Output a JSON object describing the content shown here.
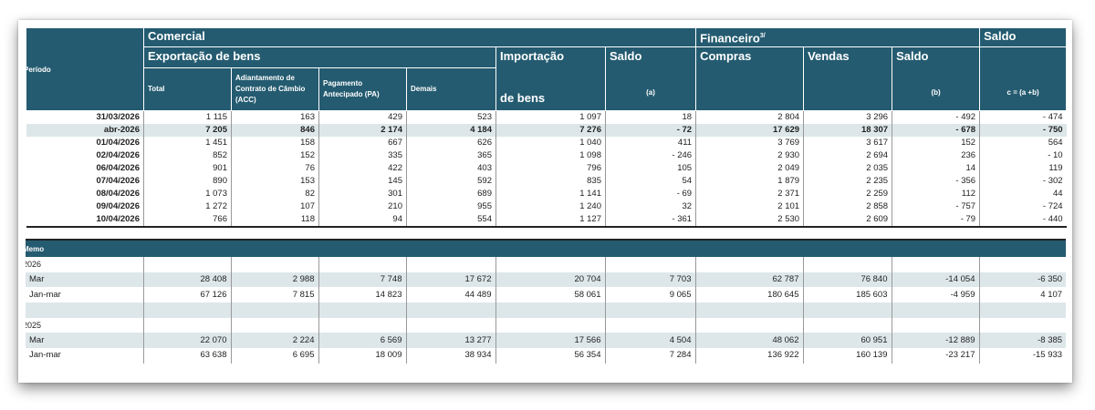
{
  "header": {
    "periodo": "Período",
    "comercial": "Comercial",
    "exportacao": "Exportação de bens",
    "importacao_1": "Importação",
    "importacao_2": "de bens",
    "saldo_a": "Saldo",
    "saldo_a_sub": "(a)",
    "financeiro": "Financeiro",
    "financeiro_note": "3/",
    "saldo_total": "Saldo",
    "saldo_total_sub": "c = (a +b)",
    "compras": "Compras",
    "vendas": "Vendas",
    "saldo_b": "Saldo",
    "saldo_b_sub": "(b)",
    "total": "Total",
    "acc": "Adiantamento de Contrato de Câmbio (ACC)",
    "pa": "Pagamento Antecipado (PA)",
    "demais": "Demais"
  },
  "rows": [
    {
      "periodo": "31/03/2026",
      "values": [
        "1 115",
        "163",
        "429",
        "523",
        "1 097",
        "18",
        "2 804",
        "3 296",
        "- 492",
        "- 474"
      ]
    },
    {
      "periodo": "abr-2026",
      "highlight": true,
      "values": [
        "7 205",
        "846",
        "2 174",
        "4 184",
        "7 276",
        "- 72",
        "17 629",
        "18 307",
        "- 678",
        "- 750"
      ]
    },
    {
      "periodo": "01/04/2026",
      "values": [
        "1 451",
        "158",
        "667",
        "626",
        "1 040",
        "411",
        "3 769",
        "3 617",
        "152",
        "564"
      ]
    },
    {
      "periodo": "02/04/2026",
      "values": [
        "852",
        "152",
        "335",
        "365",
        "1 098",
        "- 246",
        "2 930",
        "2 694",
        "236",
        "- 10"
      ]
    },
    {
      "periodo": "06/04/2026",
      "values": [
        "901",
        "76",
        "422",
        "403",
        "796",
        "105",
        "2 049",
        "2 035",
        "14",
        "119"
      ]
    },
    {
      "periodo": "07/04/2026",
      "values": [
        "890",
        "153",
        "145",
        "592",
        "835",
        "54",
        "1 879",
        "2 235",
        "- 356",
        "- 302"
      ]
    },
    {
      "periodo": "08/04/2026",
      "values": [
        "1 073",
        "82",
        "301",
        "689",
        "1 141",
        "- 69",
        "2 371",
        "2 259",
        "112",
        "44"
      ]
    },
    {
      "periodo": "09/04/2026",
      "values": [
        "1 272",
        "107",
        "210",
        "955",
        "1 240",
        "32",
        "2 101",
        "2 858",
        "- 757",
        "- 724"
      ]
    },
    {
      "periodo": "10/04/2026",
      "values": [
        "766",
        "118",
        "94",
        "554",
        "1 127",
        "- 361",
        "2 530",
        "2 609",
        "- 79",
        "- 440"
      ]
    }
  ],
  "memo": {
    "title": "Memo",
    "rows": [
      {
        "label": "2026",
        "year": true,
        "values": [
          "",
          "",
          "",
          "",
          "",
          "",
          "",
          "",
          "",
          ""
        ]
      },
      {
        "label": "Mar",
        "shaded": true,
        "values": [
          "28 408",
          "2 988",
          "7 748",
          "17 672",
          "20 704",
          "7 703",
          "62 787",
          "76 840",
          "-14 054",
          "-6 350"
        ]
      },
      {
        "label": "Jan-mar",
        "values": [
          "67 126",
          "7 815",
          "14 823",
          "44 489",
          "58 061",
          "9 065",
          "180 645",
          "185 603",
          "-4 959",
          "4 107"
        ]
      },
      {
        "label": "",
        "shaded": true,
        "values": [
          "",
          "",
          "",
          "",
          "",
          "",
          "",
          "",
          "",
          ""
        ]
      },
      {
        "label": "2025",
        "year": true,
        "values": [
          "",
          "",
          "",
          "",
          "",
          "",
          "",
          "",
          "",
          ""
        ]
      },
      {
        "label": "Mar",
        "shaded": true,
        "values": [
          "22 070",
          "2 224",
          "6 569",
          "13 277",
          "17 566",
          "4 504",
          "48 062",
          "60 951",
          "-12 889",
          "-8 385"
        ]
      },
      {
        "label": "Jan-mar",
        "values": [
          "63 638",
          "6 695",
          "18 009",
          "38 934",
          "56 354",
          "7 284",
          "136 922",
          "160 139",
          "-23 217",
          "-15 933"
        ]
      }
    ]
  },
  "colors": {
    "header_bg": "#245b70",
    "highlight_bg": "#dde7ea"
  }
}
